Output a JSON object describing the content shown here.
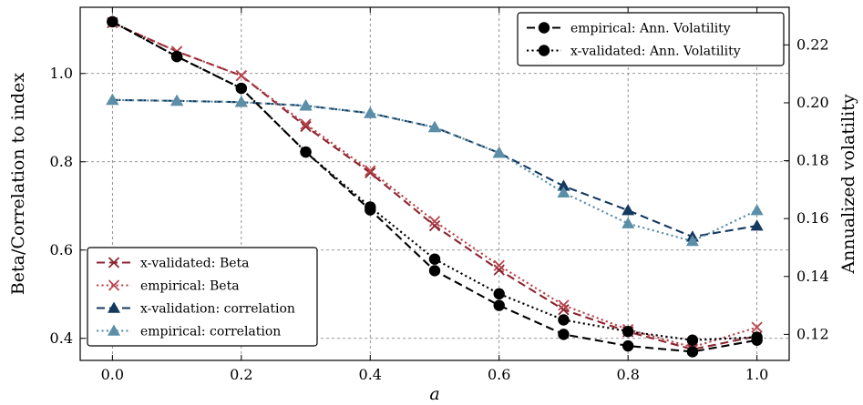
{
  "chart_data": {
    "type": "line",
    "x": [
      0.0,
      0.1,
      0.2,
      0.3,
      0.4,
      0.5,
      0.6,
      0.7,
      0.8,
      0.9,
      1.0
    ],
    "xlabel": "a",
    "xlim": [
      -0.05,
      1.05
    ],
    "xticks": [
      0.0,
      0.2,
      0.4,
      0.6,
      0.8,
      1.0
    ],
    "xtick_labels": [
      "0.0",
      "0.2",
      "0.4",
      "0.6",
      "0.8",
      "1.0"
    ],
    "left_axis": {
      "label": "Beta/Correlation to index",
      "lim": [
        0.35,
        1.15
      ],
      "ticks": [
        0.4,
        0.6,
        0.8,
        1.0
      ],
      "tick_labels": [
        "0.4",
        "0.6",
        "0.8",
        "1.0"
      ]
    },
    "right_axis": {
      "label": "Annualized volatility",
      "lim": [
        0.111,
        0.233
      ],
      "ticks": [
        0.12,
        0.14,
        0.16,
        0.18,
        0.2,
        0.22
      ],
      "tick_labels": [
        "0.12",
        "0.14",
        "0.16",
        "0.18",
        "0.20",
        "0.22"
      ]
    },
    "grid": true,
    "series": [
      {
        "name": "x-validated: Beta",
        "axis": "left",
        "color": "#8b2530",
        "linestyle": "dashed",
        "marker": "x",
        "values": [
          1.115,
          1.05,
          0.995,
          0.88,
          0.775,
          0.655,
          0.555,
          0.465,
          0.415,
          0.375,
          0.405
        ]
      },
      {
        "name": "empirical: Beta",
        "axis": "left",
        "color": "#b8454e",
        "linestyle": "dotted",
        "marker": "x",
        "values": [
          1.115,
          1.05,
          0.995,
          0.885,
          0.78,
          0.665,
          0.565,
          0.475,
          0.42,
          0.38,
          0.425
        ]
      },
      {
        "name": "x-validation: correlation",
        "axis": "left",
        "color": "#13395f",
        "linestyle": "dashed",
        "marker": "triangle",
        "values": [
          0.94,
          0.938,
          0.935,
          0.927,
          0.91,
          0.878,
          0.82,
          0.745,
          0.69,
          0.63,
          0.655
        ]
      },
      {
        "name": "empirical: correlation",
        "axis": "left",
        "color": "#5b8fa8",
        "linestyle": "dotted",
        "marker": "triangle",
        "values": [
          0.94,
          0.938,
          0.935,
          0.927,
          0.91,
          0.878,
          0.82,
          0.73,
          0.66,
          0.62,
          0.69
        ]
      },
      {
        "name": "empirical: Ann. Volatility",
        "axis": "right",
        "color": "#000000",
        "linestyle": "dashed",
        "marker": "circle",
        "values": [
          0.228,
          0.216,
          0.205,
          0.183,
          0.163,
          0.142,
          0.13,
          0.12,
          0.116,
          0.114,
          0.118
        ]
      },
      {
        "name": "x-validated: Ann. Volatility",
        "axis": "right",
        "color": "#000000",
        "linestyle": "dotted",
        "marker": "circle",
        "values": [
          0.228,
          0.216,
          0.205,
          0.183,
          0.164,
          0.146,
          0.134,
          0.125,
          0.121,
          0.118,
          0.119
        ]
      }
    ],
    "legends": [
      {
        "location": "top-right",
        "items": [
          "empirical: Ann. Volatility",
          "x-validated: Ann. Volatility"
        ]
      },
      {
        "location": "bottom-left",
        "items": [
          "x-validated: Beta",
          "empirical: Beta",
          "x-validation: correlation",
          "empirical: correlation"
        ]
      }
    ]
  }
}
